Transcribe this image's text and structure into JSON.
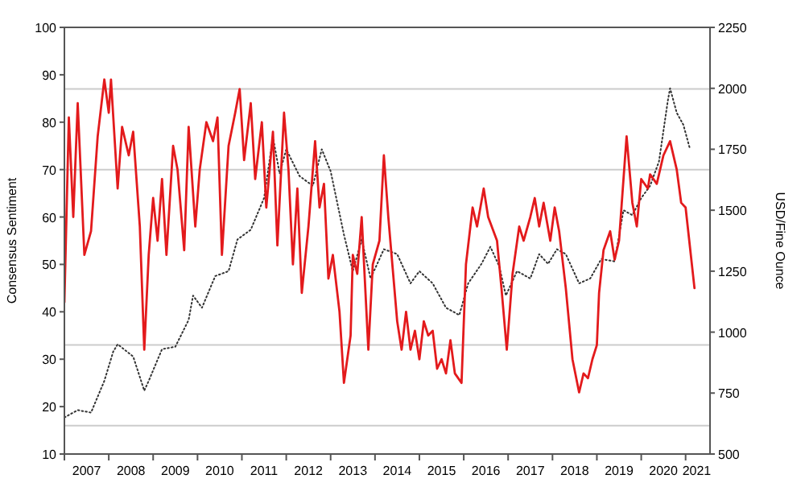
{
  "chart_data": {
    "type": "line",
    "xlabel": null,
    "ylabel": "Consensus Sentiment",
    "y2label": "USD/Fine Ounce",
    "xlim": [
      2007,
      2021.55
    ],
    "xticks": [
      {
        "value": 2007,
        "label": null
      },
      {
        "value": 2007.5,
        "label": "2007"
      },
      {
        "value": 2008,
        "label": null
      },
      {
        "value": 2008.5,
        "label": "2008"
      },
      {
        "value": 2009,
        "label": null
      },
      {
        "value": 2009.5,
        "label": "2009"
      },
      {
        "value": 2010,
        "label": null
      },
      {
        "value": 2010.5,
        "label": "2010"
      },
      {
        "value": 2011,
        "label": null
      },
      {
        "value": 2011.5,
        "label": "2011"
      },
      {
        "value": 2012,
        "label": null
      },
      {
        "value": 2012.5,
        "label": "2012"
      },
      {
        "value": 2013,
        "label": null
      },
      {
        "value": 2013.5,
        "label": "2013"
      },
      {
        "value": 2014,
        "label": null
      },
      {
        "value": 2014.5,
        "label": "2014"
      },
      {
        "value": 2015,
        "label": null
      },
      {
        "value": 2015.5,
        "label": "2015"
      },
      {
        "value": 2016,
        "label": null
      },
      {
        "value": 2016.5,
        "label": "2016"
      },
      {
        "value": 2017,
        "label": null
      },
      {
        "value": 2017.5,
        "label": "2017"
      },
      {
        "value": 2018,
        "label": null
      },
      {
        "value": 2018.5,
        "label": "2018"
      },
      {
        "value": 2019,
        "label": null
      },
      {
        "value": 2019.5,
        "label": "2019"
      },
      {
        "value": 2020,
        "label": null
      },
      {
        "value": 2020.5,
        "label": "2020"
      },
      {
        "value": 2021,
        "label": null
      },
      {
        "value": 2021.25,
        "label": "2021"
      }
    ],
    "ylim": [
      10,
      100
    ],
    "yticks": [
      10,
      20,
      30,
      40,
      50,
      60,
      70,
      80,
      90,
      100
    ],
    "y2lim": [
      500,
      2250
    ],
    "y2ticks": [
      500,
      750,
      1000,
      1250,
      1500,
      1750,
      2000,
      2250
    ],
    "grid": false,
    "ref_lines": [
      {
        "axis": "y",
        "value": 87,
        "color": "#cccccc"
      },
      {
        "axis": "y",
        "value": 70,
        "color": "#cccccc"
      },
      {
        "axis": "y",
        "value": 33,
        "color": "#cccccc"
      },
      {
        "axis": "y",
        "value": 16,
        "color": "#cccccc"
      }
    ],
    "series": [
      {
        "axis": "y2",
        "color": "#333333",
        "line_style": "dotted",
        "x": [
          2007,
          2007.3,
          2007.6,
          2007.9,
          2008.1,
          2008.2,
          2008.55,
          2008.8,
          2008.9,
          2009.2,
          2009.5,
          2009.8,
          2009.9,
          2010.1,
          2010.4,
          2010.7,
          2010.9,
          2011.2,
          2011.5,
          2011.7,
          2011.85,
          2012,
          2012.3,
          2012.6,
          2012.8,
          2013,
          2013.3,
          2013.5,
          2013.7,
          2013.9,
          2014.2,
          2014.5,
          2014.8,
          2015,
          2015.3,
          2015.6,
          2015.9,
          2016.1,
          2016.4,
          2016.6,
          2016.8,
          2016.95,
          2017.2,
          2017.5,
          2017.7,
          2017.9,
          2018.1,
          2018.3,
          2018.6,
          2018.85,
          2019.1,
          2019.4,
          2019.6,
          2019.8,
          2020,
          2020.2,
          2020.4,
          2020.6,
          2020.65,
          2020.8,
          2020.95,
          2021.1
        ],
        "values": [
          650,
          680,
          670,
          800,
          920,
          950,
          900,
          760,
          800,
          930,
          940,
          1050,
          1150,
          1100,
          1230,
          1250,
          1380,
          1420,
          1550,
          1800,
          1650,
          1750,
          1640,
          1600,
          1750,
          1660,
          1400,
          1250,
          1380,
          1220,
          1340,
          1320,
          1200,
          1250,
          1200,
          1100,
          1070,
          1200,
          1280,
          1350,
          1270,
          1150,
          1250,
          1220,
          1320,
          1280,
          1340,
          1320,
          1200,
          1220,
          1300,
          1290,
          1500,
          1480,
          1550,
          1600,
          1700,
          1950,
          2000,
          1900,
          1850,
          1750
        ]
      },
      {
        "color": "#e31a1c",
        "line_style": "solid",
        "x": [
          2007,
          2007.1,
          2007.2,
          2007.3,
          2007.45,
          2007.6,
          2007.75,
          2007.9,
          2008,
          2008.05,
          2008.2,
          2008.3,
          2008.45,
          2008.55,
          2008.7,
          2008.8,
          2008.9,
          2009,
          2009.1,
          2009.2,
          2009.3,
          2009.45,
          2009.55,
          2009.7,
          2009.8,
          2009.95,
          2010.05,
          2010.2,
          2010.35,
          2010.45,
          2010.55,
          2010.7,
          2010.85,
          2010.95,
          2011.05,
          2011.2,
          2011.3,
          2011.45,
          2011.55,
          2011.7,
          2011.8,
          2011.95,
          2012.05,
          2012.15,
          2012.25,
          2012.35,
          2012.5,
          2012.65,
          2012.75,
          2012.85,
          2012.95,
          2013.05,
          2013.2,
          2013.3,
          2013.45,
          2013.5,
          2013.6,
          2013.7,
          2013.85,
          2013.95,
          2014.1,
          2014.2,
          2014.3,
          2014.4,
          2014.5,
          2014.6,
          2014.7,
          2014.8,
          2014.9,
          2015,
          2015.1,
          2015.2,
          2015.3,
          2015.4,
          2015.5,
          2015.6,
          2015.7,
          2015.8,
          2015.95,
          2016.05,
          2016.2,
          2016.3,
          2016.45,
          2016.55,
          2016.75,
          2016.85,
          2016.97,
          2017.1,
          2017.25,
          2017.35,
          2017.5,
          2017.6,
          2017.7,
          2017.8,
          2017.95,
          2018.05,
          2018.15,
          2018.3,
          2018.45,
          2018.6,
          2018.7,
          2018.8,
          2018.9,
          2019,
          2019.05,
          2019.15,
          2019.3,
          2019.4,
          2019.5,
          2019.67,
          2019.8,
          2019.9,
          2020,
          2020.15,
          2020.2,
          2020.35,
          2020.5,
          2020.65,
          2020.8,
          2020.9,
          2021,
          2021.2
        ],
        "values": [
          42,
          81,
          60,
          84,
          52,
          57,
          77,
          89,
          82,
          89,
          66,
          79,
          73,
          78,
          58,
          32,
          52,
          64,
          55,
          68,
          52,
          75,
          70,
          53,
          79,
          58,
          70,
          80,
          76,
          81,
          52,
          75,
          82,
          87,
          72,
          84,
          68,
          80,
          62,
          78,
          54,
          82,
          70,
          50,
          66,
          44,
          58,
          76,
          62,
          67,
          47,
          52,
          40,
          25,
          35,
          52,
          48,
          60,
          32,
          50,
          55,
          73,
          60,
          49,
          38,
          32,
          40,
          32,
          36,
          30,
          38,
          35,
          36,
          28,
          30,
          27,
          34,
          27,
          25,
          50,
          62,
          58,
          66,
          60,
          55,
          45,
          32,
          48,
          58,
          55,
          60,
          64,
          58,
          63,
          55,
          62,
          57,
          45,
          30,
          23,
          27,
          26,
          30,
          33,
          44,
          53,
          57,
          51,
          55,
          77,
          63,
          58,
          68,
          66,
          69,
          67,
          73,
          76,
          70,
          63,
          62,
          45
        ]
      }
    ]
  }
}
